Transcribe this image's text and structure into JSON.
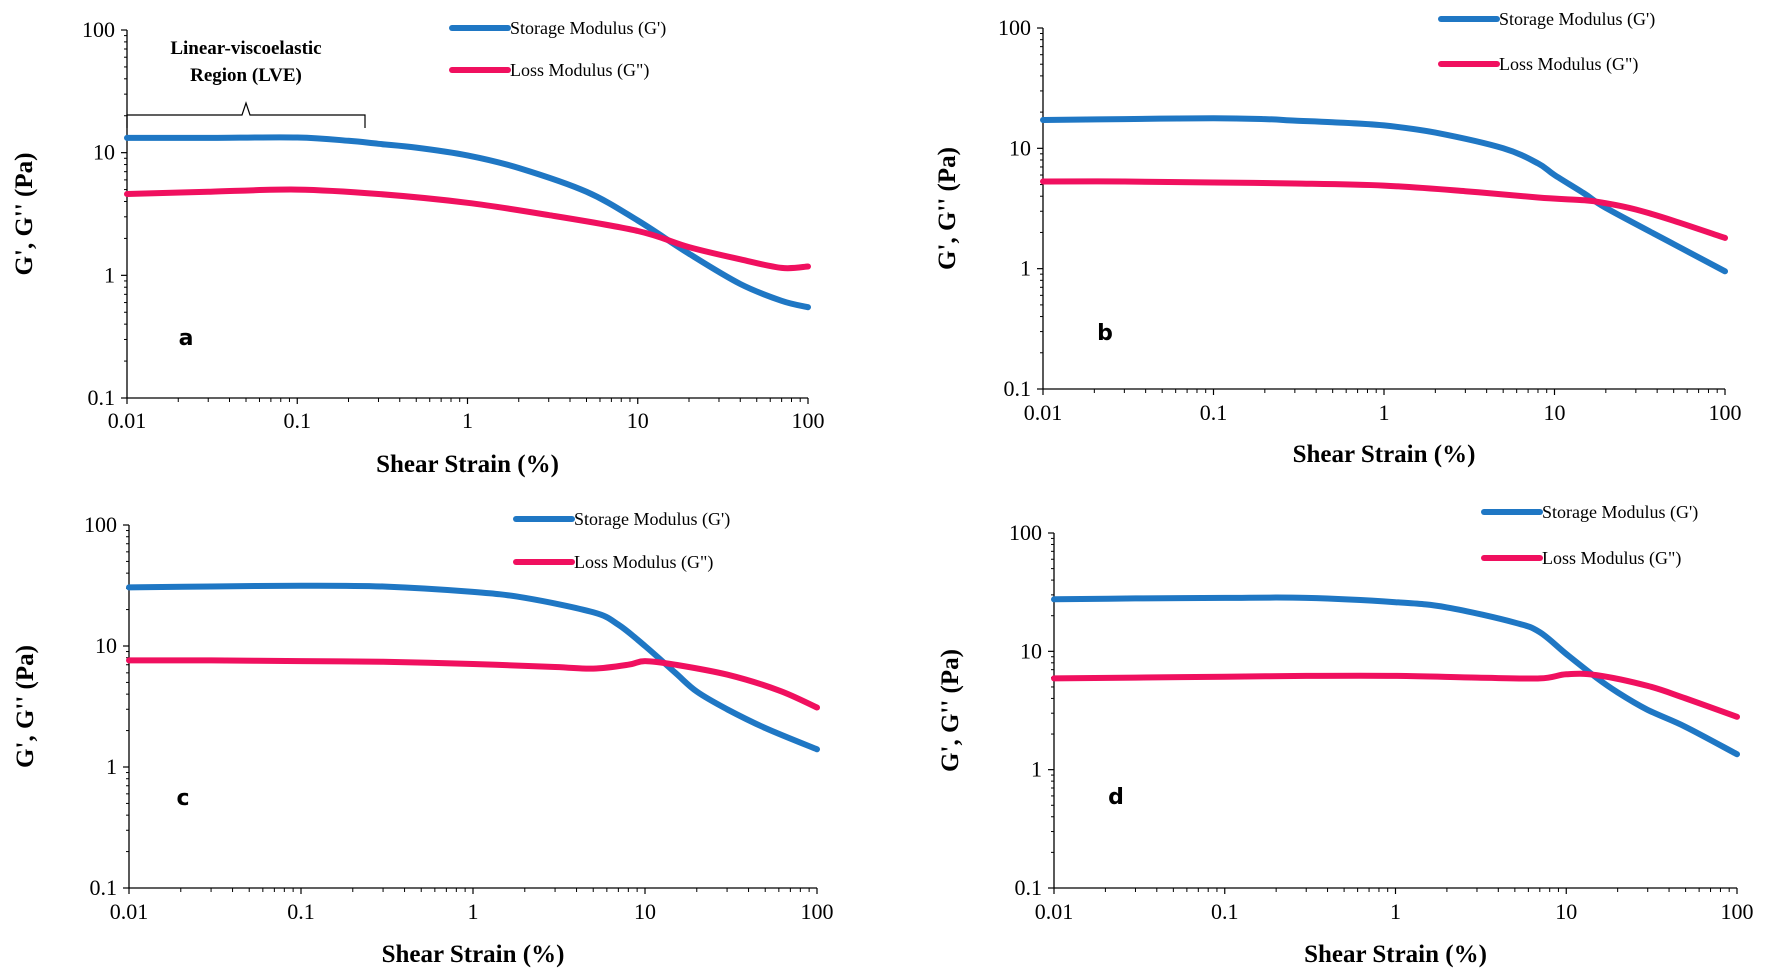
{
  "chart_data": [
    {
      "type": "line",
      "panel": "a",
      "xlabel": "Shear Strain (%)",
      "ylabel": "G', G'' (Pa)",
      "x_scale": "log",
      "y_scale": "log",
      "xlim": [
        0.01,
        100
      ],
      "ylim": [
        0.1,
        100
      ],
      "x_ticks": [
        "0.01",
        "0.1",
        "1",
        "10",
        "100"
      ],
      "y_ticks": [
        "0.1",
        "1",
        "10",
        "100"
      ],
      "annotation": {
        "line1": "Linear-viscoelastic",
        "line2": "Region (LVE)",
        "x_from": 0.01,
        "x_to": 0.25
      },
      "legend_position": "top-right",
      "series": [
        {
          "name": "Storage Modulus (G')",
          "color": "#1f77c4",
          "points": [
            [
              0.01,
              13.2
            ],
            [
              0.03,
              13.2
            ],
            [
              0.1,
              13.3
            ],
            [
              0.2,
              12.5
            ],
            [
              0.3,
              11.8
            ],
            [
              0.5,
              11.0
            ],
            [
              1,
              9.5
            ],
            [
              2,
              7.5
            ],
            [
              5,
              4.8
            ],
            [
              10,
              2.8
            ],
            [
              20,
              1.5
            ],
            [
              40,
              0.85
            ],
            [
              70,
              0.62
            ],
            [
              100,
              0.55
            ]
          ]
        },
        {
          "name": "Loss Modulus (G\")",
          "color": "#f0105f",
          "points": [
            [
              0.01,
              4.6
            ],
            [
              0.03,
              4.8
            ],
            [
              0.1,
              5.0
            ],
            [
              0.3,
              4.6
            ],
            [
              1,
              3.9
            ],
            [
              3,
              3.1
            ],
            [
              10,
              2.3
            ],
            [
              20,
              1.7
            ],
            [
              40,
              1.35
            ],
            [
              70,
              1.15
            ],
            [
              100,
              1.18
            ]
          ]
        }
      ]
    },
    {
      "type": "line",
      "panel": "b",
      "xlabel": "Shear Strain (%)",
      "ylabel": "G', G'' (Pa)",
      "x_scale": "log",
      "y_scale": "log",
      "xlim": [
        0.01,
        100
      ],
      "ylim": [
        0.1,
        100
      ],
      "x_ticks": [
        "0.01",
        "0.1",
        "1",
        "10",
        "100"
      ],
      "y_ticks": [
        "0.1",
        "1",
        "10",
        "100"
      ],
      "legend_position": "top-right",
      "series": [
        {
          "name": "Storage Modulus (G')",
          "color": "#1f77c4",
          "points": [
            [
              0.01,
              17.2
            ],
            [
              0.03,
              17.5
            ],
            [
              0.1,
              17.8
            ],
            [
              0.2,
              17.5
            ],
            [
              0.3,
              17.0
            ],
            [
              0.5,
              16.5
            ],
            [
              1,
              15.5
            ],
            [
              2,
              13.5
            ],
            [
              5,
              10
            ],
            [
              8,
              7.5
            ],
            [
              10,
              6.0
            ],
            [
              15,
              4.2
            ],
            [
              20,
              3.2
            ],
            [
              50,
              1.6
            ],
            [
              100,
              0.95
            ]
          ]
        },
        {
          "name": "Loss Modulus (G\")",
          "color": "#f0105f",
          "points": [
            [
              0.01,
              5.3
            ],
            [
              0.03,
              5.3
            ],
            [
              0.1,
              5.2
            ],
            [
              0.3,
              5.1
            ],
            [
              1,
              4.9
            ],
            [
              3,
              4.4
            ],
            [
              8,
              3.9
            ],
            [
              15,
              3.7
            ],
            [
              20,
              3.5
            ],
            [
              30,
              3.1
            ],
            [
              50,
              2.5
            ],
            [
              100,
              1.8
            ]
          ]
        }
      ]
    },
    {
      "type": "line",
      "panel": "c",
      "xlabel": "Shear Strain (%)",
      "ylabel": "G', G'' (Pa)",
      "x_scale": "log",
      "y_scale": "log",
      "xlim": [
        0.01,
        100
      ],
      "ylim": [
        0.1,
        100
      ],
      "x_ticks": [
        "0.01",
        "0.1",
        "1",
        "10",
        "100"
      ],
      "y_ticks": [
        "0.1",
        "1",
        "10",
        "100"
      ],
      "legend_position": "top-right",
      "series": [
        {
          "name": "Storage Modulus (G')",
          "color": "#1f77c4",
          "points": [
            [
              0.01,
              30.5
            ],
            [
              0.03,
              31.0
            ],
            [
              0.1,
              31.5
            ],
            [
              0.3,
              31.0
            ],
            [
              1,
              28
            ],
            [
              2,
              25
            ],
            [
              5,
              19
            ],
            [
              7,
              15
            ],
            [
              10,
              10
            ],
            [
              15,
              6
            ],
            [
              20,
              4.2
            ],
            [
              30,
              3.0
            ],
            [
              50,
              2.1
            ],
            [
              100,
              1.4
            ]
          ]
        },
        {
          "name": "Loss Modulus (G\")",
          "color": "#f0105f",
          "points": [
            [
              0.01,
              7.6
            ],
            [
              0.03,
              7.6
            ],
            [
              0.1,
              7.5
            ],
            [
              0.3,
              7.4
            ],
            [
              1,
              7.1
            ],
            [
              3,
              6.7
            ],
            [
              5,
              6.5
            ],
            [
              8,
              7.0
            ],
            [
              10,
              7.5
            ],
            [
              15,
              7.0
            ],
            [
              30,
              5.8
            ],
            [
              60,
              4.3
            ],
            [
              100,
              3.1
            ]
          ]
        }
      ]
    },
    {
      "type": "line",
      "panel": "d",
      "xlabel": "Shear Strain (%)",
      "ylabel": "G', G'' (Pa)",
      "x_scale": "log",
      "y_scale": "log",
      "xlim": [
        0.01,
        100
      ],
      "ylim": [
        0.1,
        100
      ],
      "x_ticks": [
        "0.01",
        "0.1",
        "1",
        "10",
        "100"
      ],
      "y_ticks": [
        "0.1",
        "1",
        "10",
        "100"
      ],
      "legend_position": "top-right",
      "series": [
        {
          "name": "Storage Modulus (G')",
          "color": "#1f77c4",
          "points": [
            [
              0.01,
              27.5
            ],
            [
              0.03,
              28
            ],
            [
              0.1,
              28.3
            ],
            [
              0.3,
              28.3
            ],
            [
              1,
              26
            ],
            [
              2,
              23.5
            ],
            [
              5,
              17.5
            ],
            [
              7,
              14.5
            ],
            [
              10,
              9.5
            ],
            [
              15,
              6.0
            ],
            [
              20,
              4.5
            ],
            [
              30,
              3.2
            ],
            [
              50,
              2.3
            ],
            [
              100,
              1.35
            ]
          ]
        },
        {
          "name": "Loss Modulus (G\")",
          "color": "#f0105f",
          "points": [
            [
              0.01,
              5.9
            ],
            [
              0.03,
              6.0
            ],
            [
              0.1,
              6.1
            ],
            [
              0.3,
              6.2
            ],
            [
              1,
              6.2
            ],
            [
              3,
              6.0
            ],
            [
              7,
              5.9
            ],
            [
              10,
              6.4
            ],
            [
              15,
              6.3
            ],
            [
              30,
              5.1
            ],
            [
              50,
              4.0
            ],
            [
              100,
              2.8
            ]
          ]
        }
      ]
    }
  ]
}
